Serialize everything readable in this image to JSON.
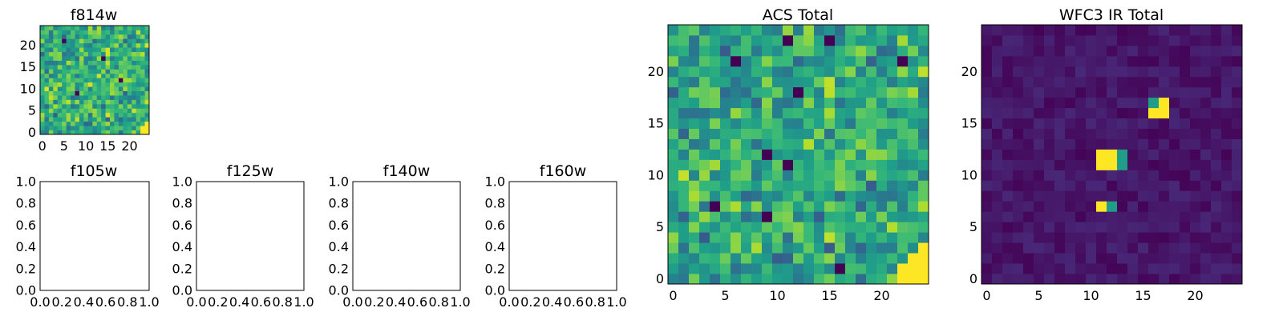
{
  "chart_data": [
    {
      "type": "heatmap",
      "title": "f814w",
      "size": 25,
      "xticks": [
        "0",
        "5",
        "10",
        "15",
        "20"
      ],
      "yticks": [
        "0",
        "5",
        "10",
        "15",
        "20"
      ],
      "colormap": "viridis",
      "pattern": "noise",
      "seed": 11,
      "base": 0.63,
      "spread": 0.33,
      "hot": [
        [
          23,
          0
        ],
        [
          24,
          0
        ],
        [
          23,
          1
        ],
        [
          24,
          1
        ],
        [
          24,
          2
        ]
      ],
      "min_pixels": [
        [
          5,
          21
        ],
        [
          8,
          9
        ],
        [
          14,
          17
        ],
        [
          18,
          12
        ]
      ]
    },
    {
      "type": "empty",
      "title": "f105w",
      "xticks": [
        "0.0",
        "0.2",
        "0.4",
        "0.6",
        "0.8",
        "1.0"
      ],
      "yticks": [
        "0.0",
        "0.2",
        "0.4",
        "0.6",
        "0.8",
        "1.0"
      ]
    },
    {
      "type": "empty",
      "title": "f125w",
      "xticks": [
        "0.0",
        "0.2",
        "0.4",
        "0.6",
        "0.8",
        "1.0"
      ],
      "yticks": [
        "0.0",
        "0.2",
        "0.4",
        "0.6",
        "0.8",
        "1.0"
      ]
    },
    {
      "type": "empty",
      "title": "f140w",
      "xticks": [
        "0.0",
        "0.2",
        "0.4",
        "0.6",
        "0.8",
        "1.0"
      ],
      "yticks": [
        "0.0",
        "0.2",
        "0.4",
        "0.6",
        "0.8",
        "1.0"
      ]
    },
    {
      "type": "empty",
      "title": "f160w",
      "xticks": [
        "0.0",
        "0.2",
        "0.4",
        "0.6",
        "0.8",
        "1.0"
      ],
      "yticks": [
        "0.0",
        "0.2",
        "0.4",
        "0.6",
        "0.8",
        "1.0"
      ]
    },
    {
      "type": "heatmap",
      "title": "ACS Total",
      "size": 25,
      "xticks": [
        "0",
        "5",
        "10",
        "15",
        "20"
      ],
      "yticks": [
        "0",
        "5",
        "10",
        "15",
        "20"
      ],
      "colormap": "viridis",
      "pattern": "noise",
      "seed": 11,
      "base": 0.6,
      "spread": 0.33,
      "hot": [
        [
          22,
          0
        ],
        [
          23,
          0
        ],
        [
          24,
          0
        ],
        [
          22,
          1
        ],
        [
          23,
          1
        ],
        [
          24,
          1
        ],
        [
          23,
          2
        ],
        [
          24,
          2
        ],
        [
          24,
          3
        ]
      ],
      "min_pixels": [
        [
          11,
          23
        ],
        [
          15,
          23
        ],
        [
          6,
          21
        ],
        [
          22,
          21
        ],
        [
          9,
          12
        ],
        [
          11,
          11
        ],
        [
          4,
          7
        ],
        [
          9,
          6
        ],
        [
          16,
          1
        ],
        [
          12,
          18
        ]
      ]
    },
    {
      "type": "heatmap",
      "title": "WFC3 IR Total",
      "size": 25,
      "xticks": [
        "0",
        "5",
        "10",
        "15",
        "20"
      ],
      "yticks": [
        "0",
        "5",
        "10",
        "15",
        "20"
      ],
      "colormap": "viridis",
      "pattern": "faint",
      "seed": 29,
      "base": 0.06,
      "spread": 0.1,
      "hot": [
        [
          11,
          12
        ],
        [
          12,
          12
        ],
        [
          11,
          11
        ],
        [
          12,
          11
        ],
        [
          17,
          17
        ],
        [
          16,
          16
        ],
        [
          17,
          16
        ],
        [
          11,
          7
        ]
      ],
      "warm": [
        [
          16,
          17
        ],
        [
          12,
          7
        ],
        [
          13,
          11
        ],
        [
          13,
          12
        ]
      ]
    }
  ]
}
